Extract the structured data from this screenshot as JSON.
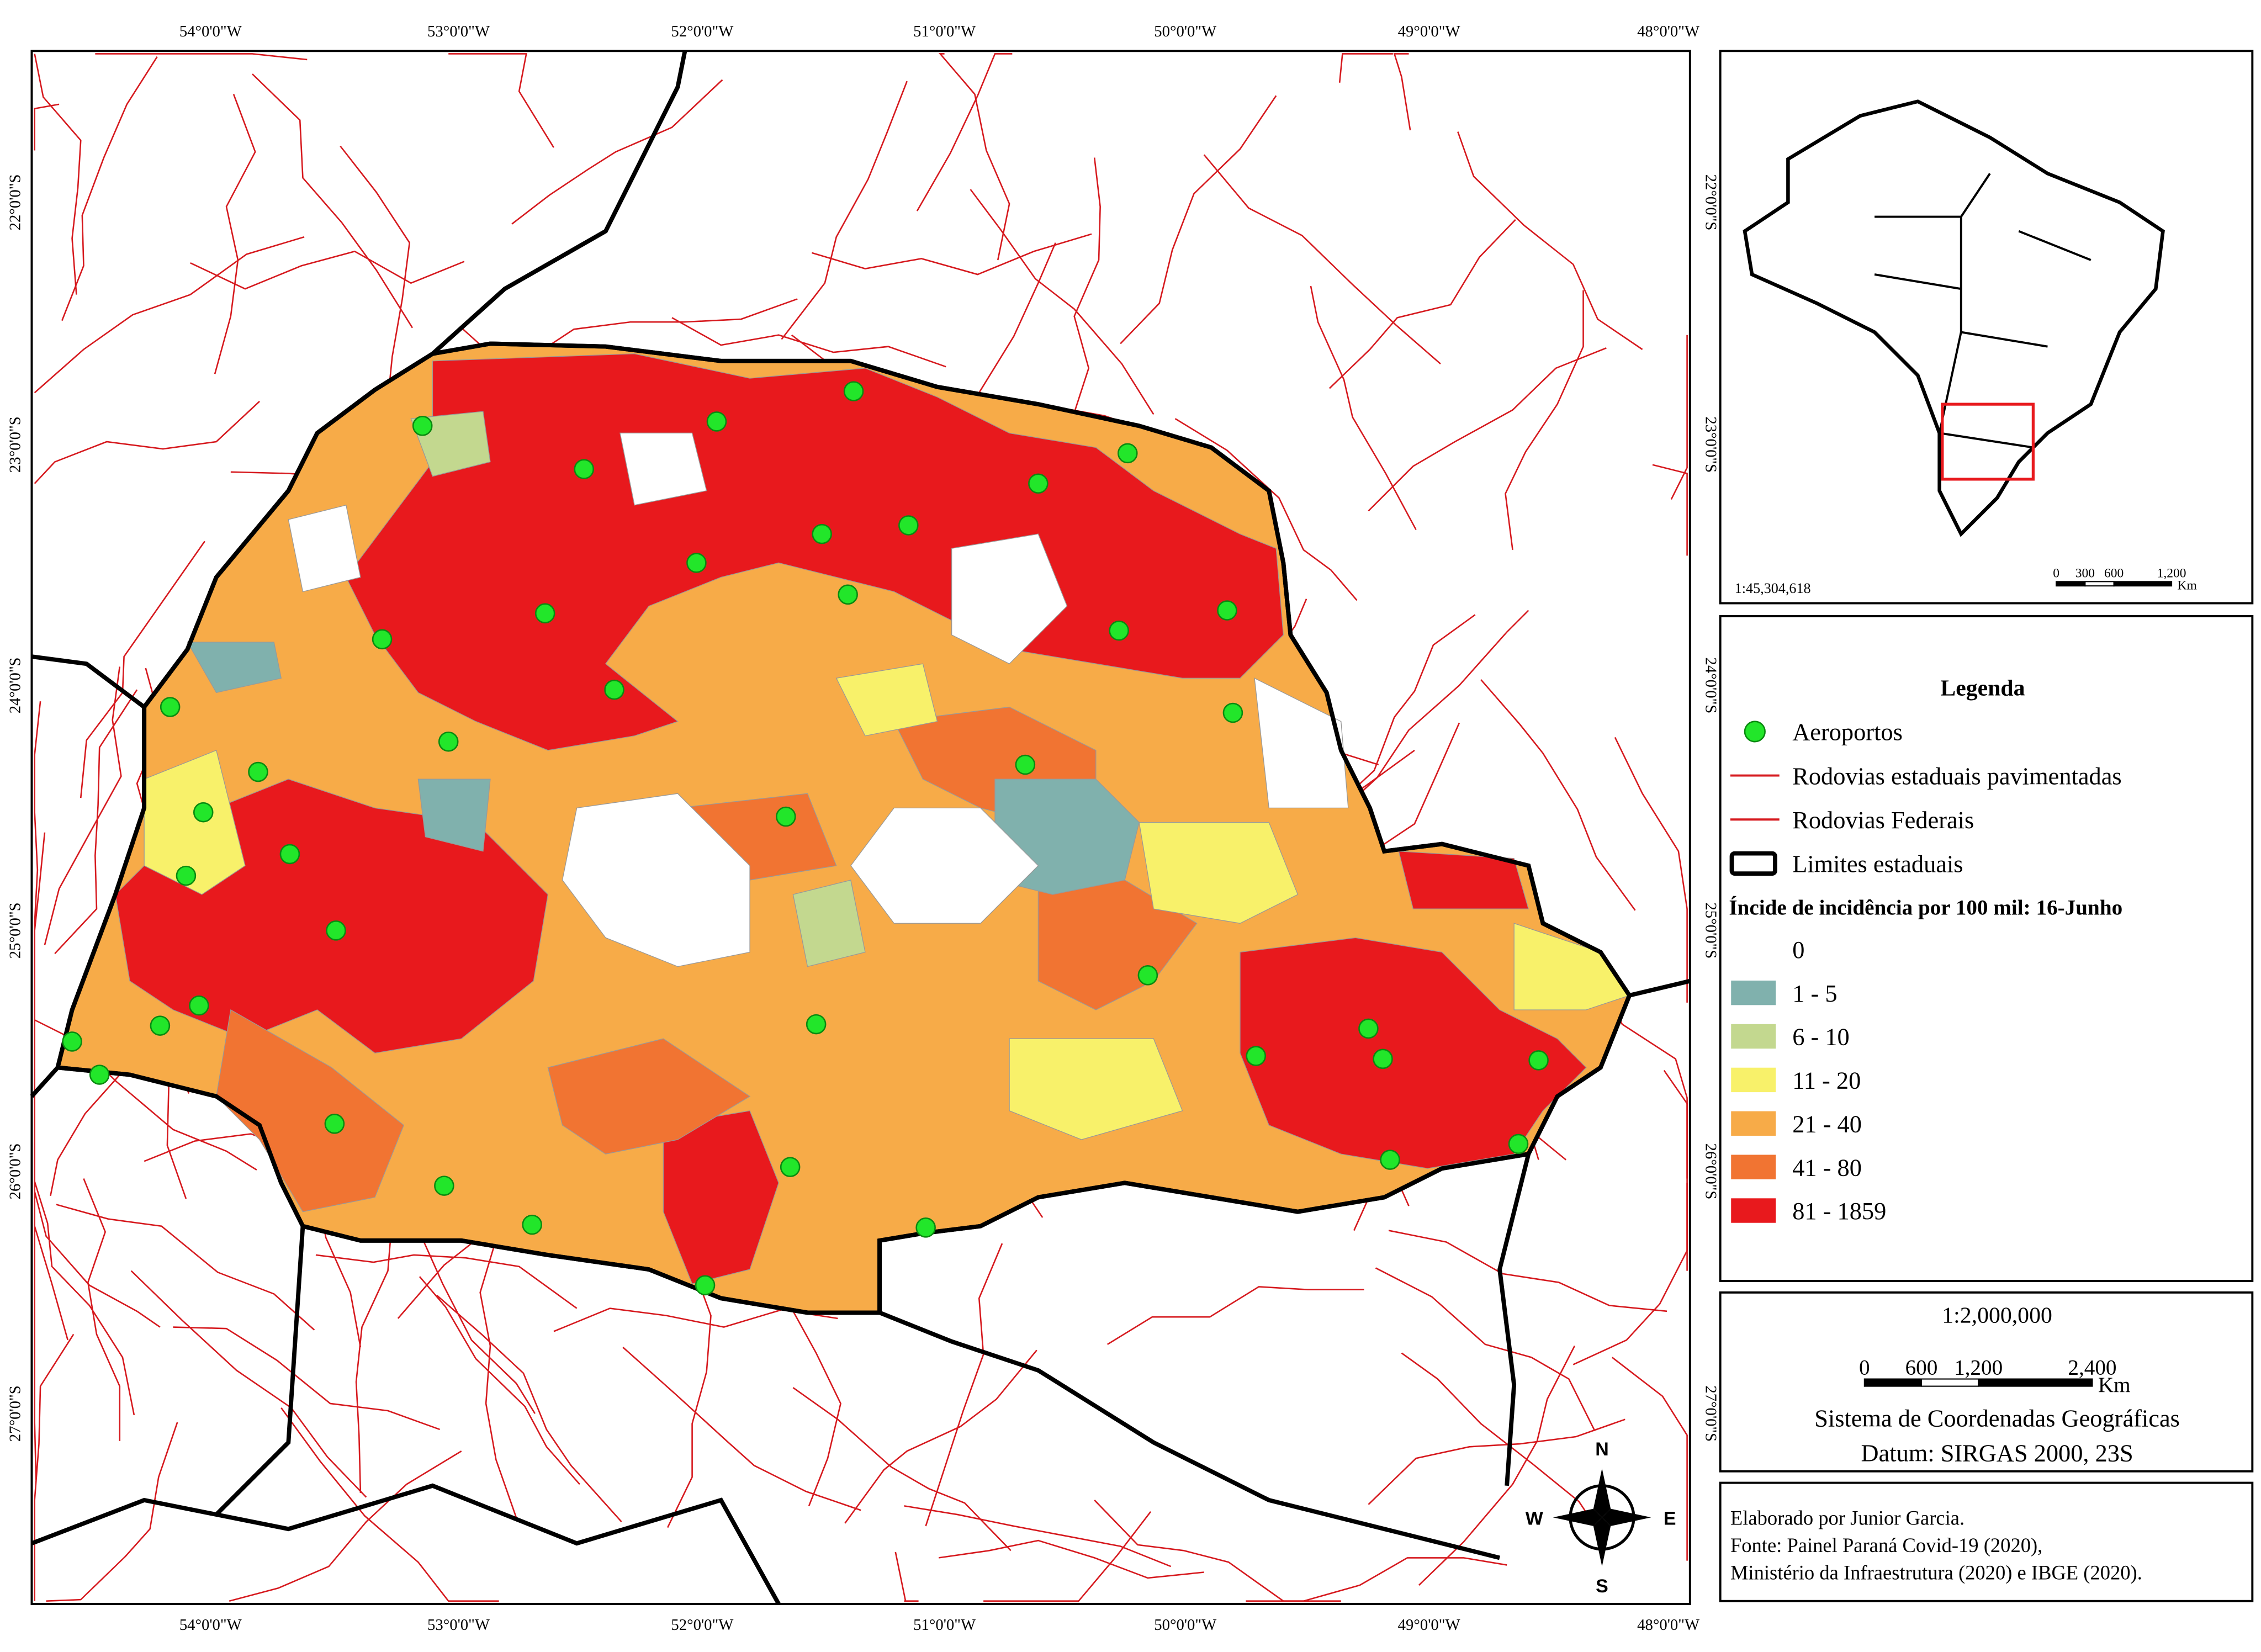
{
  "map": {
    "x_labels": [
      "54°0'0\"W",
      "53°0'0\"W",
      "52°0'0\"W",
      "51°0'0\"W",
      "50°0'0\"W",
      "49°0'0\"W",
      "48°0'0\"W"
    ],
    "y_labels": [
      "22°0'0\"S",
      "23°0'0\"S",
      "24°0'0\"S",
      "25°0'0\"S",
      "26°0'0\"S",
      "27°0'0\"S"
    ],
    "inset_scale": "1:45,304,618",
    "inset_bar": {
      "ticks": [
        "0",
        "300",
        "600",
        "1,200"
      ],
      "unit": "Km"
    }
  },
  "legend": {
    "title": "Legenda",
    "items": [
      "Aeroportos",
      "Rodovias estaduais pavimentadas",
      "Rodovias Federais",
      "Limites estaduais"
    ],
    "scale_title": "Íncide de incidência por 100 mil: 16-Junho",
    "classes": [
      {
        "label": "0",
        "color": "#ffffff"
      },
      {
        "label": "1 - 5",
        "color": "#80b1ad"
      },
      {
        "label": "6 - 10",
        "color": "#c3d88f"
      },
      {
        "label": "11 - 20",
        "color": "#f8f16a"
      },
      {
        "label": "21 - 40",
        "color": "#f7ab48"
      },
      {
        "label": "41 - 80",
        "color": "#f17432"
      },
      {
        "label": "81 - 1859",
        "color": "#e8191d"
      }
    ]
  },
  "scale": {
    "ratio": "1:2,000,000",
    "ticks": [
      "0",
      "600",
      "1,200",
      "2,400"
    ],
    "unit": "Km",
    "crs": "Sistema de Coordenadas Geográficas",
    "datum": "Datum: SIRGAS 2000, 23S"
  },
  "credits": [
    "Elaborado por Junior Garcia.",
    "Fonte: Painel Paraná Covid-19 (2020),",
    "Ministério da Infraestrutura (2020) e IBGE (2020)."
  ],
  "compass": [
    "N",
    "S",
    "W",
    "E"
  ]
}
